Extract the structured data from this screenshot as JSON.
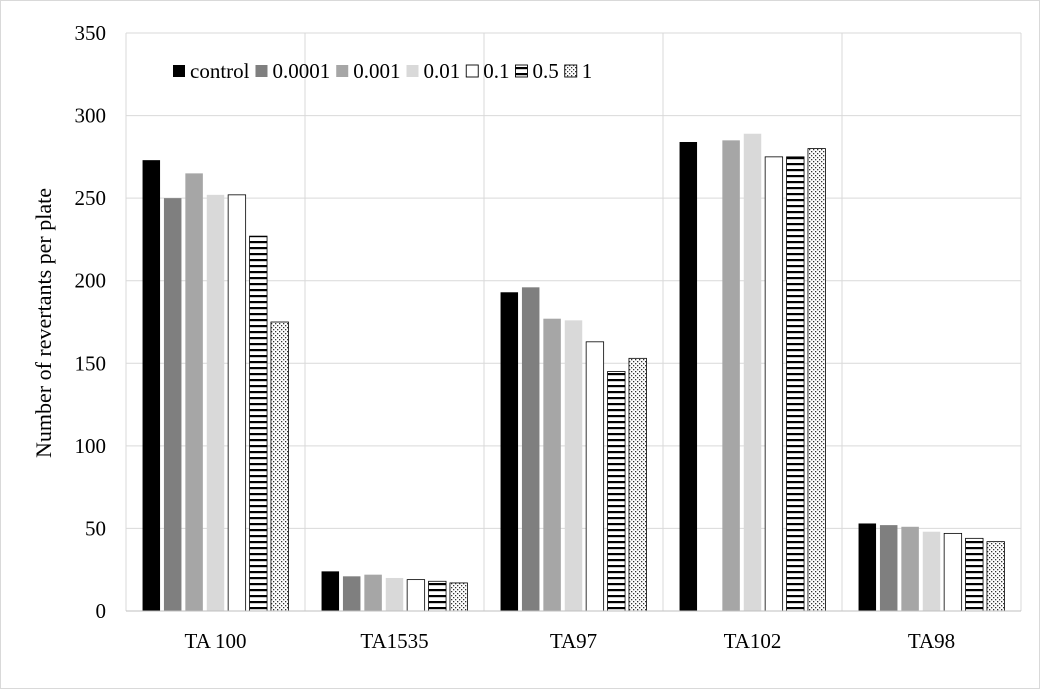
{
  "chart_data": {
    "type": "bar",
    "title": "",
    "xlabel": "",
    "ylabel": "Number of revertants per plate",
    "ylim": [
      0,
      350
    ],
    "yticks": [
      0,
      50,
      100,
      150,
      200,
      250,
      300,
      350
    ],
    "grid": true,
    "legend_position": "top-left",
    "categories": [
      "TA 100",
      "TA1535",
      "TA97",
      "TA102",
      "TA98"
    ],
    "series": [
      {
        "name": "control",
        "style": "solid",
        "color": "#000000",
        "values": [
          273,
          24,
          193,
          284,
          53
        ]
      },
      {
        "name": "0.0001",
        "style": "solid",
        "color": "#7f7f7f",
        "values": [
          250,
          21,
          196,
          null,
          52
        ]
      },
      {
        "name": "0.001",
        "style": "solid",
        "color": "#a6a6a6",
        "values": [
          265,
          22,
          177,
          285,
          51
        ]
      },
      {
        "name": "0.01",
        "style": "solid",
        "color": "#d9d9d9",
        "values": [
          252,
          20,
          176,
          289,
          48
        ]
      },
      {
        "name": "0.1",
        "style": "outline",
        "color": "#ffffff",
        "values": [
          252,
          19,
          163,
          275,
          47
        ]
      },
      {
        "name": "0.5",
        "style": "hstripes",
        "color": "#ffffff",
        "values": [
          227,
          18,
          145,
          275,
          44
        ]
      },
      {
        "name": "1",
        "style": "dots",
        "color": "#ffffff",
        "values": [
          175,
          17,
          153,
          280,
          42
        ]
      }
    ]
  }
}
